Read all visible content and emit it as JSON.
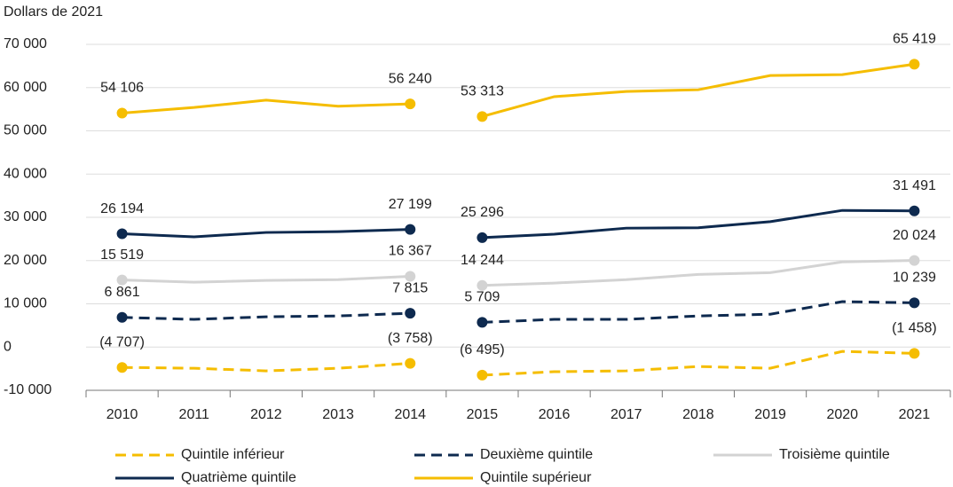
{
  "chart_data": {
    "type": "line",
    "y_axis_label": "Dollars de 2021",
    "categories": [
      "2010",
      "2011",
      "2012",
      "2013",
      "2014",
      "2015",
      "2016",
      "2017",
      "2018",
      "2019",
      "2020",
      "2021"
    ],
    "break_after": 4,
    "ylim": [
      -10000,
      70000
    ],
    "yticks": [
      {
        "value": -10000,
        "label": "-10 000"
      },
      0,
      {
        "value": 10000,
        "label": "10 000"
      },
      {
        "value": 20000,
        "label": "20 000"
      },
      {
        "value": 30000,
        "label": "30 000"
      },
      {
        "value": 40000,
        "label": "40 000"
      },
      {
        "value": 50000,
        "label": "50 000"
      },
      {
        "value": 60000,
        "label": "60 000"
      },
      {
        "value": 70000,
        "label": "70 000"
      }
    ],
    "grid": true,
    "series": [
      {
        "name": "Quintile inférieur",
        "color": "#f5bd00",
        "dashed": true,
        "values": [
          -4707,
          -4900,
          -5500,
          -4900,
          -3758,
          -6495,
          -5700,
          -5500,
          -4500,
          -4900,
          -1000,
          -1458
        ],
        "value_labels": [
          "(4 707)",
          null,
          null,
          null,
          "(3 758)",
          "(6 495)",
          null,
          null,
          null,
          null,
          null,
          "(1 458)"
        ]
      },
      {
        "name": "Deuxième quintile",
        "color": "#0e2a4f",
        "dashed": true,
        "values": [
          6861,
          6400,
          7000,
          7200,
          7815,
          5709,
          6400,
          6400,
          7200,
          7600,
          10500,
          10239
        ],
        "value_labels": [
          "6 861",
          null,
          null,
          null,
          "7 815",
          "5 709",
          null,
          null,
          null,
          null,
          null,
          "10 239"
        ]
      },
      {
        "name": "Troisième quintile",
        "color": "#d3d3d3",
        "dashed": false,
        "values": [
          15519,
          15000,
          15400,
          15600,
          16367,
          14244,
          14800,
          15600,
          16800,
          17200,
          19700,
          20024
        ],
        "value_labels": [
          "15 519",
          null,
          null,
          null,
          "16 367",
          "14 244",
          null,
          null,
          null,
          null,
          null,
          "20 024"
        ]
      },
      {
        "name": "Quatrième quintile",
        "color": "#0e2a4f",
        "dashed": false,
        "values": [
          26194,
          25500,
          26500,
          26700,
          27199,
          25296,
          26100,
          27500,
          27600,
          29000,
          31600,
          31491
        ],
        "value_labels": [
          "26 194",
          null,
          null,
          null,
          "27 199",
          "25 296",
          null,
          null,
          null,
          null,
          null,
          "31 491"
        ]
      },
      {
        "name": "Quintile supérieur",
        "color": "#f5bd00",
        "dashed": false,
        "values": [
          54106,
          55400,
          57100,
          55700,
          56240,
          53313,
          57900,
          59100,
          59500,
          62800,
          63000,
          65419
        ],
        "value_labels": [
          "54 106",
          null,
          null,
          null,
          "56 240",
          "53 313",
          null,
          null,
          null,
          null,
          null,
          "65 419"
        ]
      }
    ]
  }
}
